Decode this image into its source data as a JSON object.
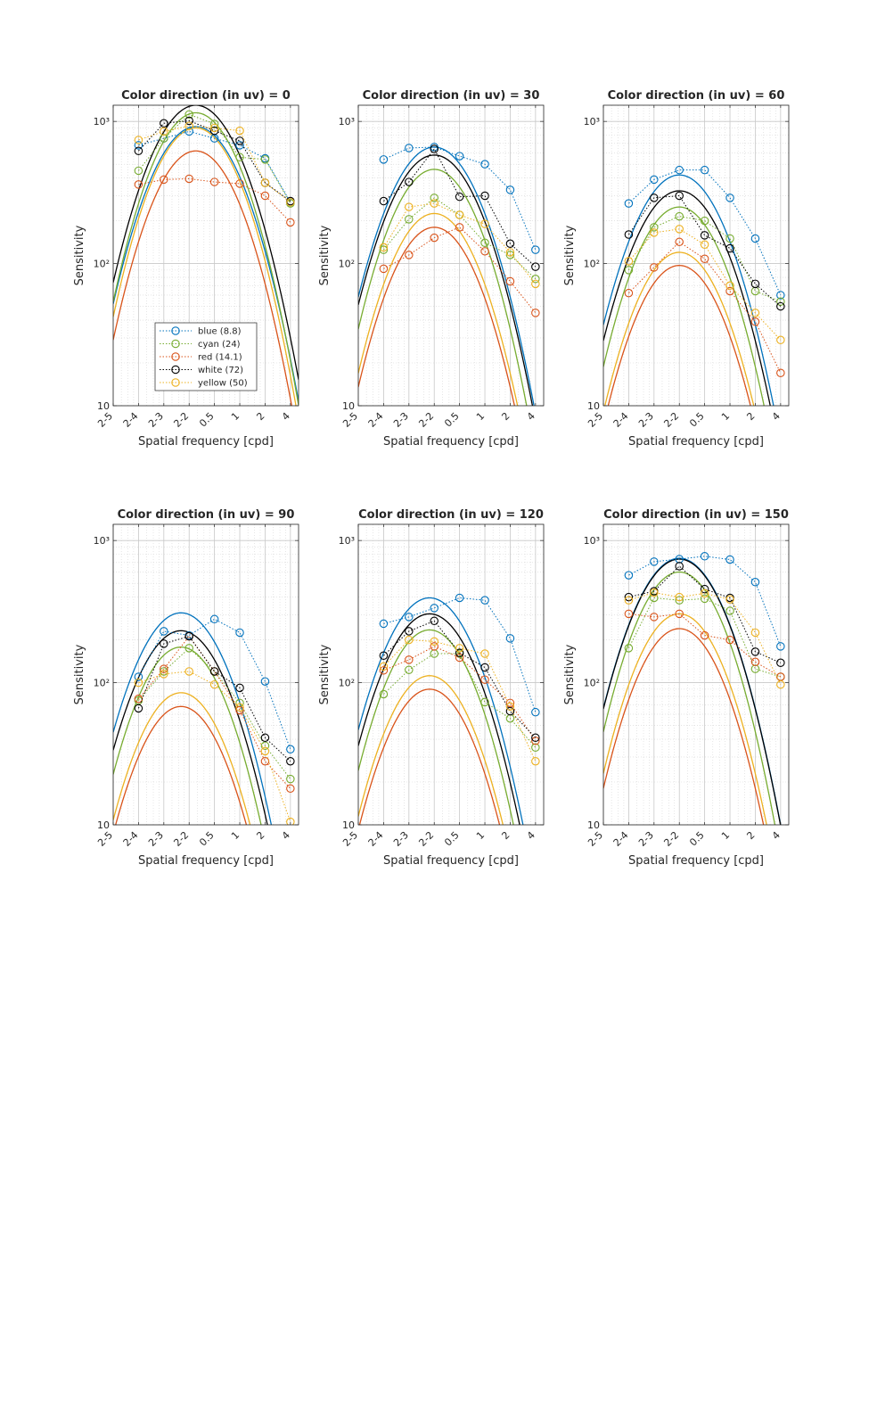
{
  "figure": {
    "xlabel": "Spatial frequency [cpd]",
    "ylabel": "Sensitivity",
    "x_tick_labels": [
      "2-5",
      "2-4",
      "2-3",
      "2-2",
      "0.5",
      "1",
      "2",
      "4"
    ],
    "y_tick_labels": [
      "10",
      "10²",
      "10³"
    ],
    "legend_location": "bottom-center of first panel"
  },
  "colors": {
    "blue": "#0072BD",
    "cyan": "#77AC30",
    "red": "#D95319",
    "white": "#000000",
    "yellow": "#EDB120"
  },
  "chart_data": [
    {
      "type": "line",
      "title": "Color direction (in uv) = 0",
      "xscale": "log2",
      "yscale": "log",
      "xlim": [
        0.03125,
        5.0
      ],
      "ylim": [
        10,
        1300
      ],
      "x": [
        0.0625,
        0.125,
        0.25,
        0.5,
        1,
        2,
        4
      ],
      "legend": [
        {
          "key": "blue",
          "label": "blue (8.8)"
        },
        {
          "key": "cyan",
          "label": "cyan (24)"
        },
        {
          "key": "red",
          "label": "red (14.1)"
        },
        {
          "key": "white",
          "label": "white (72)"
        },
        {
          "key": "yellow",
          "label": "yellow (50)"
        }
      ],
      "series": [
        {
          "key": "blue",
          "points": [
            680,
            760,
            850,
            760,
            680,
            550,
            270
          ],
          "fit_peak": 920,
          "fit_peak_x": 0.3,
          "fit_width": 1.6
        },
        {
          "key": "cyan",
          "points": [
            450,
            760,
            1120,
            960,
            560,
            540,
            265
          ],
          "fit_peak": 1150,
          "fit_peak_x": 0.3,
          "fit_width": 1.55
        },
        {
          "key": "red",
          "points": [
            360,
            390,
            395,
            375,
            365,
            300,
            195
          ],
          "fit_peak": 620,
          "fit_peak_x": 0.3,
          "fit_width": 1.55
        },
        {
          "key": "white",
          "points": [
            620,
            970,
            1010,
            860,
            730,
            370,
            275
          ],
          "fit_peak": 1300,
          "fit_peak_x": 0.3,
          "fit_width": 1.6
        },
        {
          "key": "yellow",
          "points": [
            740,
            850,
            930,
            900,
            860,
            370,
            270
          ],
          "fit_peak": 900,
          "fit_peak_x": 0.3,
          "fit_width": 1.55
        }
      ]
    },
    {
      "type": "line",
      "title": "Color direction (in uv) = 30",
      "xscale": "log2",
      "yscale": "log",
      "xlim": [
        0.03125,
        5.0
      ],
      "ylim": [
        10,
        1300
      ],
      "x": [
        0.0625,
        0.125,
        0.25,
        0.5,
        1,
        2,
        4
      ],
      "series": [
        {
          "key": "blue",
          "points": [
            540,
            650,
            660,
            570,
            500,
            330,
            125
          ],
          "fit_peak": 660,
          "fit_peak_x": 0.25,
          "fit_width": 1.6
        },
        {
          "key": "cyan",
          "points": [
            125,
            205,
            290,
            220,
            140,
            115,
            78
          ],
          "fit_peak": 460,
          "fit_peak_x": 0.25,
          "fit_width": 1.55
        },
        {
          "key": "red",
          "points": [
            92,
            115,
            152,
            180,
            122,
            75,
            45
          ],
          "fit_peak": 180,
          "fit_peak_x": 0.25,
          "fit_width": 1.55
        },
        {
          "key": "white",
          "points": [
            275,
            375,
            640,
            295,
            300,
            138,
            95
          ],
          "fit_peak": 580,
          "fit_peak_x": 0.25,
          "fit_width": 1.6
        },
        {
          "key": "yellow",
          "points": [
            130,
            250,
            265,
            220,
            190,
            120,
            72
          ],
          "fit_peak": 225,
          "fit_peak_x": 0.25,
          "fit_width": 1.55
        }
      ]
    },
    {
      "type": "line",
      "title": "Color direction (in uv) = 60",
      "xscale": "log2",
      "yscale": "log",
      "xlim": [
        0.03125,
        5.0
      ],
      "ylim": [
        10,
        1300
      ],
      "x": [
        0.0625,
        0.125,
        0.25,
        0.5,
        1,
        2,
        4
      ],
      "series": [
        {
          "key": "blue",
          "points": [
            265,
            390,
            455,
            455,
            290,
            150,
            60
          ],
          "fit_peak": 420,
          "fit_peak_x": 0.25,
          "fit_width": 1.6
        },
        {
          "key": "cyan",
          "points": [
            90,
            180,
            215,
            200,
            150,
            64,
            54
          ],
          "fit_peak": 250,
          "fit_peak_x": 0.25,
          "fit_width": 1.55
        },
        {
          "key": "red",
          "points": [
            62,
            94,
            142,
            108,
            64,
            39,
            17
          ],
          "fit_peak": 97,
          "fit_peak_x": 0.25,
          "fit_width": 1.55
        },
        {
          "key": "white",
          "points": [
            160,
            290,
            300,
            158,
            128,
            72,
            50
          ],
          "fit_peak": 325,
          "fit_peak_x": 0.25,
          "fit_width": 1.6
        },
        {
          "key": "yellow",
          "points": [
            104,
            165,
            175,
            136,
            70,
            45,
            29
          ],
          "fit_peak": 120,
          "fit_peak_x": 0.25,
          "fit_width": 1.55
        }
      ]
    },
    {
      "type": "line",
      "title": "Color direction (in uv) = 90",
      "xscale": "log2",
      "yscale": "log",
      "xlim": [
        0.03125,
        5.0
      ],
      "ylim": [
        10,
        1300
      ],
      "x": [
        0.0625,
        0.125,
        0.25,
        0.5,
        1,
        2,
        4
      ],
      "series": [
        {
          "key": "blue",
          "points": [
            110,
            230,
            215,
            280,
            225,
            102,
            34
          ],
          "fit_peak": 310,
          "fit_peak_x": 0.2,
          "fit_width": 1.6
        },
        {
          "key": "cyan",
          "points": [
            75,
            120,
            175,
            120,
            72,
            36,
            21
          ],
          "fit_peak": 178,
          "fit_peak_x": 0.2,
          "fit_width": 1.55
        },
        {
          "key": "red",
          "points": [
            77,
            125,
            212,
            120,
            64,
            28,
            18
          ],
          "fit_peak": 68,
          "fit_peak_x": 0.2,
          "fit_width": 1.55
        },
        {
          "key": "white",
          "points": [
            66,
            188,
            212,
            120,
            92,
            41,
            28
          ],
          "fit_peak": 232,
          "fit_peak_x": 0.2,
          "fit_width": 1.6
        },
        {
          "key": "yellow",
          "points": [
            100,
            115,
            120,
            97,
            67,
            33,
            10.5
          ],
          "fit_peak": 85,
          "fit_peak_x": 0.2,
          "fit_width": 1.55
        }
      ]
    },
    {
      "type": "line",
      "title": "Color direction (in uv) = 120",
      "xscale": "log2",
      "yscale": "log",
      "xlim": [
        0.03125,
        5.0
      ],
      "ylim": [
        10,
        1300
      ],
      "x": [
        0.0625,
        0.125,
        0.25,
        0.5,
        1,
        2,
        4
      ],
      "series": [
        {
          "key": "blue",
          "points": [
            260,
            290,
            335,
            395,
            380,
            205,
            62
          ],
          "fit_peak": 395,
          "fit_peak_x": 0.22,
          "fit_width": 1.6
        },
        {
          "key": "cyan",
          "points": [
            83,
            123,
            160,
            160,
            73,
            56,
            35
          ],
          "fit_peak": 235,
          "fit_peak_x": 0.22,
          "fit_width": 1.55
        },
        {
          "key": "red",
          "points": [
            122,
            145,
            180,
            150,
            105,
            72,
            39
          ],
          "fit_peak": 90,
          "fit_peak_x": 0.22,
          "fit_width": 1.55
        },
        {
          "key": "white",
          "points": [
            155,
            230,
            272,
            162,
            128,
            63,
            41
          ],
          "fit_peak": 305,
          "fit_peak_x": 0.22,
          "fit_width": 1.6
        },
        {
          "key": "yellow",
          "points": [
            130,
            200,
            195,
            175,
            160,
            68,
            28
          ],
          "fit_peak": 112,
          "fit_peak_x": 0.22,
          "fit_width": 1.55
        }
      ]
    },
    {
      "type": "line",
      "title": "Color direction (in uv) = 150",
      "xscale": "log2",
      "yscale": "log",
      "xlim": [
        0.03125,
        5.0
      ],
      "ylim": [
        10,
        1300
      ],
      "x": [
        0.0625,
        0.125,
        0.25,
        0.5,
        1,
        2,
        4
      ],
      "series": [
        {
          "key": "blue",
          "points": [
            570,
            710,
            740,
            775,
            735,
            510,
            180
          ],
          "fit_peak": 750,
          "fit_peak_x": 0.25,
          "fit_width": 1.6
        },
        {
          "key": "cyan",
          "points": [
            175,
            395,
            380,
            390,
            320,
            125,
            110
          ],
          "fit_peak": 600,
          "fit_peak_x": 0.25,
          "fit_width": 1.55
        },
        {
          "key": "red",
          "points": [
            305,
            290,
            305,
            215,
            200,
            140,
            110
          ],
          "fit_peak": 240,
          "fit_peak_x": 0.25,
          "fit_width": 1.55
        },
        {
          "key": "white",
          "points": [
            400,
            440,
            660,
            455,
            395,
            165,
            138
          ],
          "fit_peak": 740,
          "fit_peak_x": 0.25,
          "fit_width": 1.6
        },
        {
          "key": "yellow",
          "points": [
            380,
            430,
            400,
            425,
            385,
            225,
            97
          ],
          "fit_peak": 305,
          "fit_peak_x": 0.25,
          "fit_width": 1.55
        }
      ]
    }
  ]
}
